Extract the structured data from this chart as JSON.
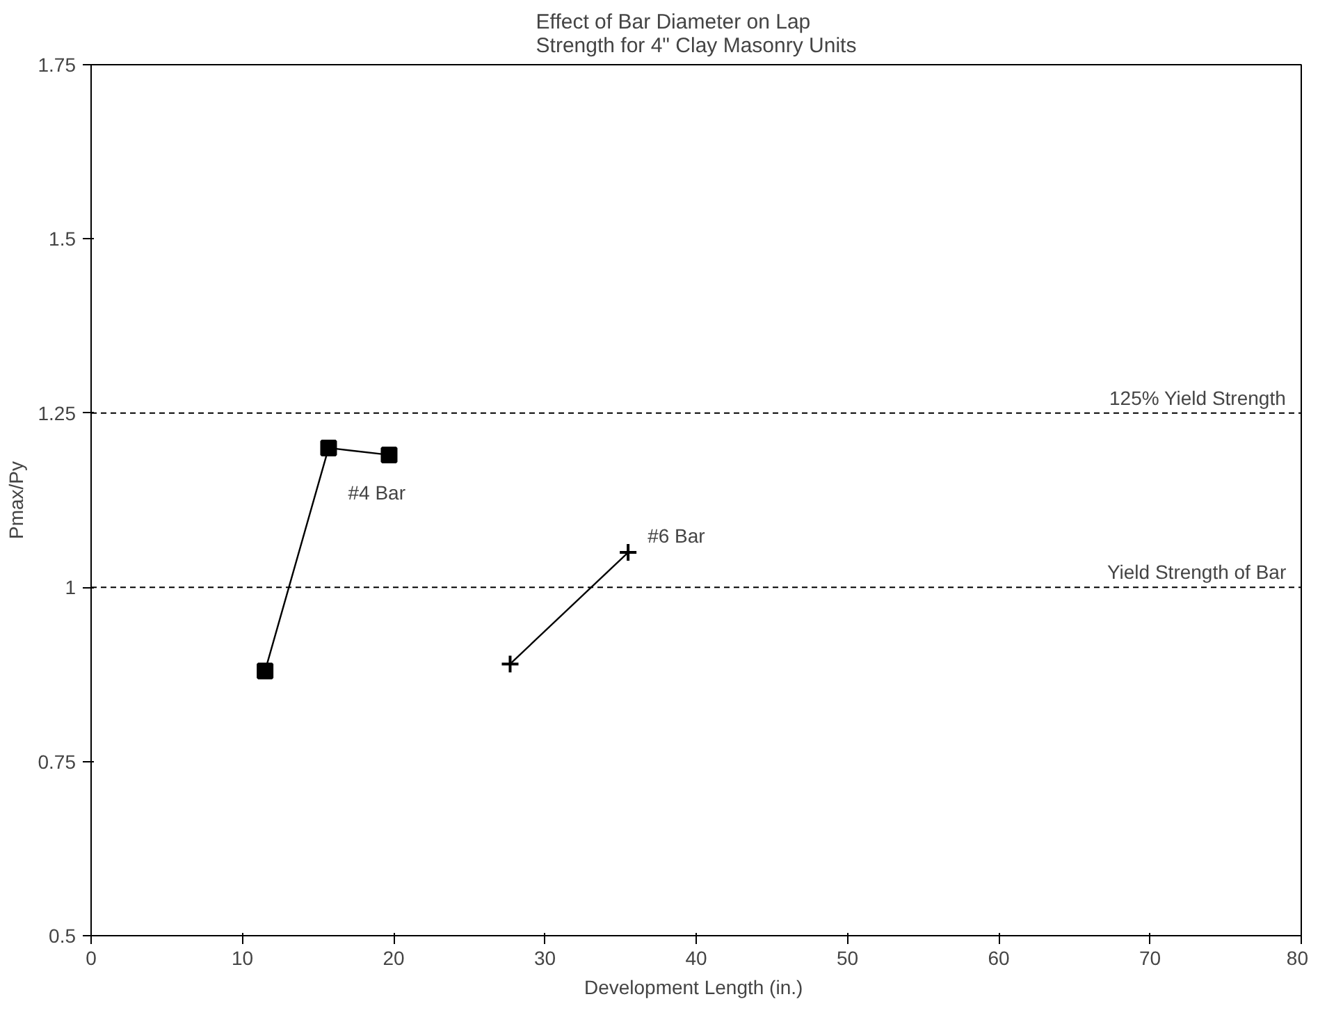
{
  "chart_data": {
    "type": "line",
    "title": "Effect of Bar Diameter on Lap\nStrength for 4\" Clay Masonry Units",
    "xlabel": "Development Length  (in.)",
    "ylabel": "Pmax/Py",
    "series": [
      {
        "color": "#000000",
        "marker": "square",
        "x": [
          11.5,
          15.7,
          19.7
        ],
        "values": [
          0.88,
          1.2,
          1.19
        ]
      },
      {
        "color": "#000000",
        "marker": "cross",
        "x": [
          27.7,
          35.5
        ],
        "values": [
          0.89,
          1.05
        ]
      }
    ],
    "xlim": [
      0,
      80
    ],
    "ylim": [
      0.5,
      1.75
    ],
    "xticks": [
      0,
      10,
      20,
      30,
      40,
      50,
      60,
      70,
      80
    ],
    "yticks": [
      0.5,
      0.75,
      1,
      1.25,
      1.5,
      1.75
    ],
    "ref_lines": [
      {
        "axis": "y",
        "value": 1.25,
        "label": "125% Yield Strength",
        "line_style": "dashed",
        "color": "#000000"
      },
      {
        "axis": "y",
        "value": 1,
        "label": "Yield Strength of Bar",
        "line_style": "dashed",
        "color": "#000000"
      }
    ],
    "annotations": [
      {
        "text": "#4 Bar",
        "x": 15.7,
        "y": 1.2
      },
      {
        "text": "#6 Bar",
        "x": 35.5,
        "y": 1.05
      }
    ],
    "grid": false
  }
}
